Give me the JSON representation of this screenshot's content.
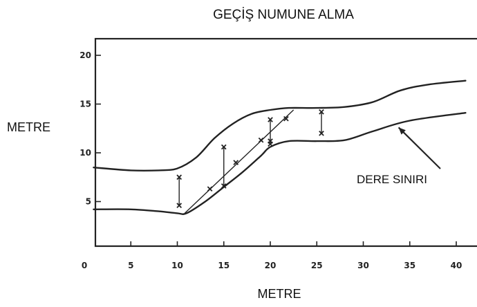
{
  "chart_data": {
    "type": "line",
    "title": "GEÇİŞ NUMUNE ALMA",
    "xlabel": "METRE",
    "ylabel": "METRE",
    "xlim": [
      0,
      41
    ],
    "ylim": [
      0,
      22
    ],
    "x_ticks": [
      {
        "value": 0,
        "label": "0"
      },
      {
        "value": 5,
        "label": "5"
      },
      {
        "value": 10,
        "label": "10"
      },
      {
        "value": 15,
        "label": "15"
      },
      {
        "value": 20,
        "label": "20"
      },
      {
        "value": 25,
        "label": "25"
      },
      {
        "value": 30,
        "label": "30"
      },
      {
        "value": 35,
        "label": "35"
      },
      {
        "value": 40,
        "label": "40"
      }
    ],
    "y_ticks": [
      {
        "value": 5,
        "label": "5"
      },
      {
        "value": 10,
        "label": "10"
      },
      {
        "value": 15,
        "label": "15"
      },
      {
        "value": 20,
        "label": "20"
      }
    ],
    "grid": false,
    "boundaries": [
      {
        "x": [
          1,
          5,
          8,
          10,
          12,
          14,
          16,
          18,
          20,
          22,
          25,
          28,
          31,
          34,
          37,
          41
        ],
        "y": [
          8.5,
          8.2,
          8.2,
          8.4,
          9.5,
          11.5,
          13.0,
          14.0,
          14.4,
          14.6,
          14.6,
          14.7,
          15.2,
          16.4,
          17.0,
          17.4
        ]
      },
      {
        "x": [
          1,
          5,
          8,
          10,
          11,
          13,
          15,
          17,
          19,
          20,
          22,
          25,
          28,
          31,
          35,
          41
        ],
        "y": [
          4.2,
          4.2,
          4.0,
          3.8,
          3.8,
          5.0,
          6.5,
          8.0,
          9.7,
          10.6,
          11.2,
          11.2,
          11.3,
          12.2,
          13.3,
          14.1
        ]
      }
    ],
    "transects": [
      {
        "x": [
          10.2,
          10.2
        ],
        "y": [
          4.6,
          7.5
        ]
      },
      {
        "x": [
          15.0,
          15.0
        ],
        "y": [
          6.6,
          10.6
        ]
      },
      {
        "x": [
          20.0,
          20.0
        ],
        "y": [
          10.9,
          13.4
        ]
      },
      {
        "x": [
          25.5,
          25.5
        ],
        "y": [
          12.0,
          14.2
        ]
      },
      {
        "x": [
          10.8,
          22.5
        ],
        "y": [
          3.8,
          14.4
        ]
      }
    ],
    "sample_points": {
      "x": [
        10.2,
        10.2,
        13.5,
        15.0,
        15.0,
        16.3,
        19.0,
        20.0,
        20.0,
        20.0,
        21.7,
        25.5,
        25.5
      ],
      "y": [
        4.6,
        7.5,
        6.3,
        6.6,
        10.6,
        9.0,
        11.3,
        10.9,
        13.4,
        11.2,
        13.5,
        12.0,
        14.2
      ]
    },
    "annotations": [
      {
        "text": "DERE SINIRI",
        "x": 36,
        "y": 7.5,
        "arrow_to": [
          33.8,
          12.6
        ]
      }
    ]
  }
}
